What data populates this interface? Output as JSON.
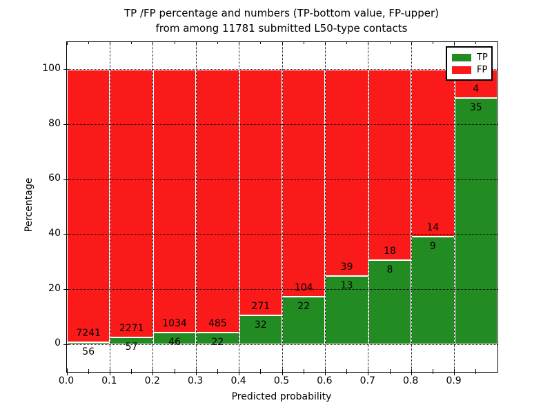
{
  "title": {
    "line1": "TP /FP percentage and numbers (TP-bottom value, FP-upper)",
    "line2": "from among 11781 submitted L50-type contacts"
  },
  "axes": {
    "xlabel": "Predicted probability",
    "ylabel": "Percentage"
  },
  "legend": {
    "items": [
      {
        "label": "TP",
        "color_key": "tp"
      },
      {
        "label": "FP",
        "color_key": "fp"
      }
    ]
  },
  "colors": {
    "tp": "#228b22",
    "fp": "#fb1a1a",
    "grid": "#000000",
    "text": "#000000"
  },
  "chart_data": {
    "type": "bar",
    "stacked": true,
    "normalized_to_percent": true,
    "title": "TP /FP percentage and numbers (TP-bottom value, FP-upper) from among 11781 submitted L50-type contacts",
    "xlabel": "Predicted probability",
    "ylabel": "Percentage",
    "bin_start": [
      0.0,
      0.1,
      0.2,
      0.3,
      0.4,
      0.5,
      0.6,
      0.7,
      0.8,
      0.9
    ],
    "bin_width": 0.1,
    "series": [
      {
        "name": "TP",
        "counts": [
          56,
          57,
          46,
          22,
          32,
          22,
          13,
          8,
          9,
          35
        ]
      },
      {
        "name": "FP",
        "counts": [
          7241,
          2271,
          1034,
          485,
          271,
          104,
          39,
          18,
          14,
          4
        ]
      }
    ],
    "tp_percent": [
      0.77,
      2.45,
      4.26,
      4.34,
      10.56,
      17.46,
      25.0,
      30.77,
      39.13,
      89.74
    ],
    "total_contacts": 11781,
    "xlim": [
      0.0,
      1.0
    ],
    "ylim": [
      -10,
      110
    ],
    "xtick_labels": [
      "0.0",
      "0.1",
      "0.2",
      "0.3",
      "0.4",
      "0.5",
      "0.6",
      "0.7",
      "0.8",
      "0.9"
    ],
    "ytick_values": [
      0,
      20,
      40,
      60,
      80,
      100
    ],
    "grid": "dotted",
    "legend_position": "upper right"
  }
}
